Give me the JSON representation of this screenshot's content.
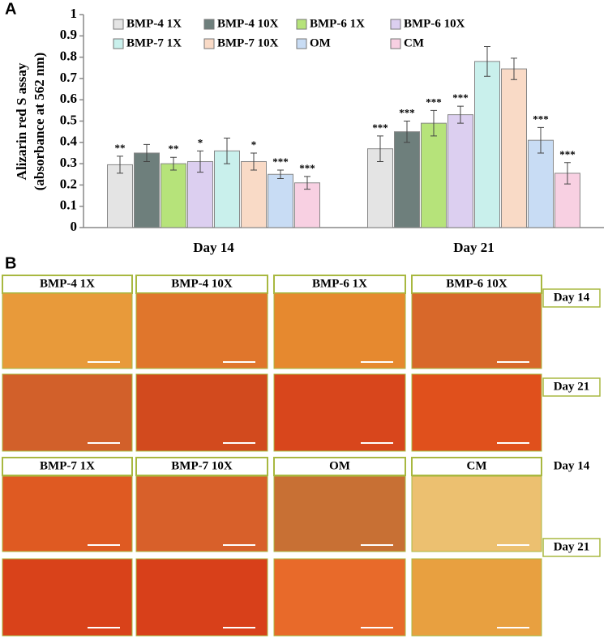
{
  "chart_data": {
    "type": "bar",
    "ylabel": [
      "Alizarin red S assay",
      "(absorbance at 562 nm)"
    ],
    "categories": [
      "Day 14",
      "Day 21"
    ],
    "ylim": [
      0,
      1
    ],
    "yticks": [
      0,
      0.1,
      0.2,
      0.3,
      0.4,
      0.5,
      0.6,
      0.7,
      0.8,
      0.9,
      1
    ],
    "series": [
      {
        "name": "BMP-4 1X",
        "color": "#e4e4e4",
        "values": [
          0.295,
          0.37
        ],
        "errors": [
          0.04,
          0.06
        ],
        "annotations": [
          "**",
          "***"
        ]
      },
      {
        "name": "BMP-4 10X",
        "color": "#6e7f7c",
        "values": [
          0.35,
          0.45
        ],
        "errors": [
          0.04,
          0.05
        ],
        "annotations": [
          null,
          "***"
        ]
      },
      {
        "name": "BMP-6 1X",
        "color": "#b6e37a",
        "values": [
          0.3,
          0.49
        ],
        "errors": [
          0.03,
          0.06
        ],
        "annotations": [
          "**",
          "***"
        ]
      },
      {
        "name": "BMP-6 10X",
        "color": "#dccff0",
        "values": [
          0.31,
          0.53
        ],
        "errors": [
          0.05,
          0.04
        ],
        "annotations": [
          "*",
          "***"
        ]
      },
      {
        "name": "BMP-7 1X",
        "color": "#c9f0ec",
        "values": [
          0.36,
          0.78
        ],
        "errors": [
          0.06,
          0.07
        ],
        "annotations": [
          null,
          null
        ]
      },
      {
        "name": "BMP-7 10X",
        "color": "#f9dac6",
        "values": [
          0.31,
          0.745
        ],
        "errors": [
          0.04,
          0.05
        ],
        "annotations": [
          "*",
          null
        ]
      },
      {
        "name": "OM",
        "color": "#c8dcf4",
        "values": [
          0.25,
          0.41
        ],
        "errors": [
          0.02,
          0.06
        ],
        "annotations": [
          "***",
          "***"
        ]
      },
      {
        "name": "CM",
        "color": "#f8d0e2",
        "values": [
          0.21,
          0.255
        ],
        "errors": [
          0.03,
          0.05
        ],
        "annotations": [
          "***",
          "***"
        ]
      }
    ]
  },
  "panel_labels": [
    "A",
    "B"
  ],
  "micrographs": {
    "columns": [
      "BMP-4 1X",
      "BMP-4 10X",
      "BMP-6 1X",
      "BMP-6 10X",
      "BMP-7 1X",
      "BMP-7 10X",
      "OM",
      "CM"
    ],
    "row_labels": [
      "Day 14",
      "Day 21",
      "Day 14",
      "Day 21"
    ]
  }
}
